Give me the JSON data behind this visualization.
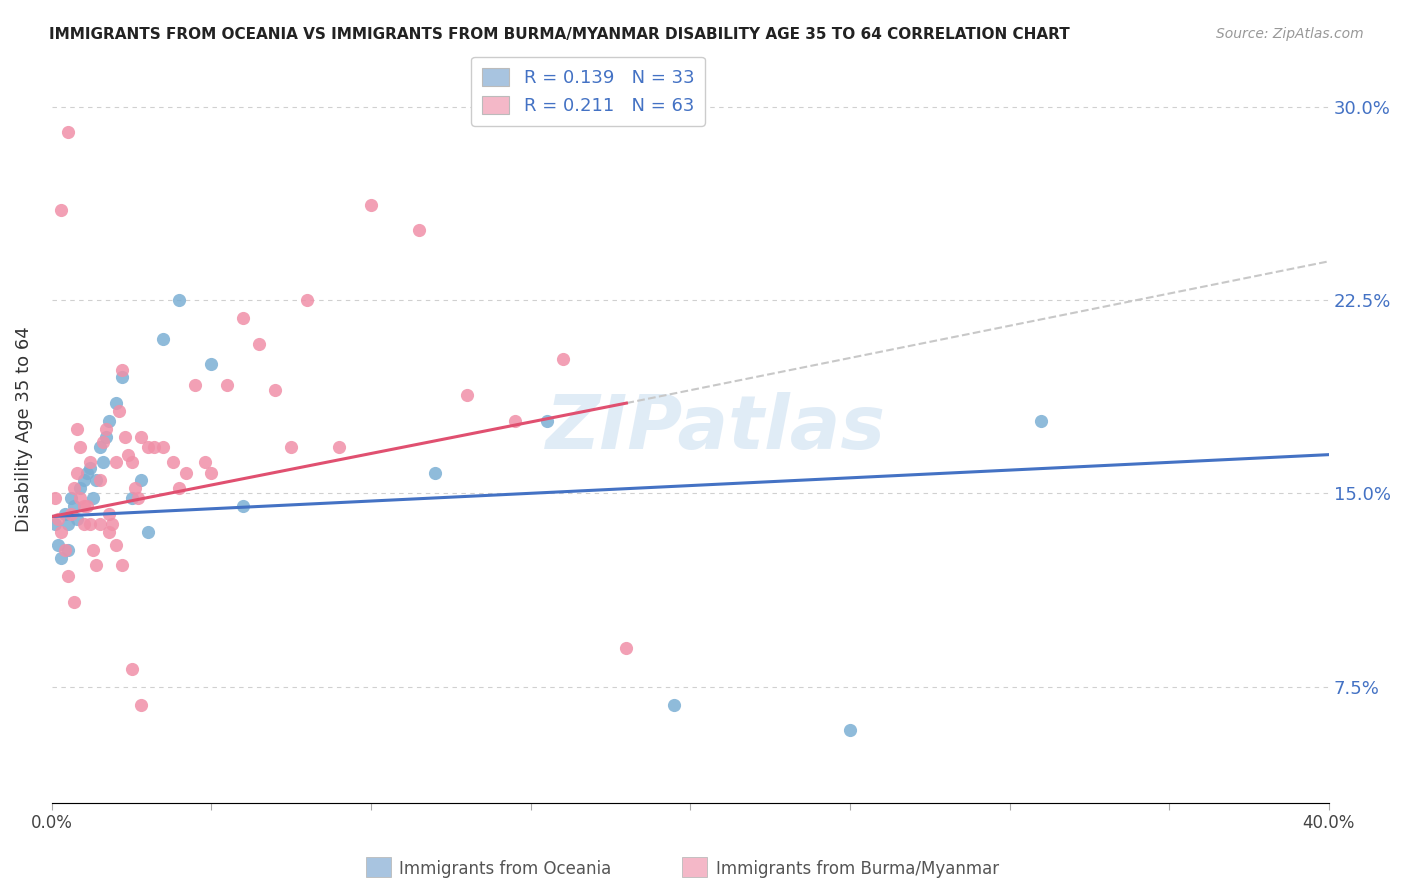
{
  "title": "IMMIGRANTS FROM OCEANIA VS IMMIGRANTS FROM BURMA/MYANMAR DISABILITY AGE 35 TO 64 CORRELATION CHART",
  "source": "Source: ZipAtlas.com",
  "ylabel": "Disability Age 35 to 64",
  "yticks": [
    "7.5%",
    "15.0%",
    "22.5%",
    "30.0%"
  ],
  "ytick_vals": [
    0.075,
    0.15,
    0.225,
    0.3
  ],
  "xlim": [
    0.0,
    0.4
  ],
  "ylim": [
    0.03,
    0.32
  ],
  "watermark": "ZIPatlas",
  "legend_series1_label": "R = 0.139   N = 33",
  "legend_series2_label": "R = 0.211   N = 63",
  "legend_series1_color": "#a8c4e0",
  "legend_series2_color": "#f4b8c8",
  "footer_label1": "Immigrants from Oceania",
  "footer_label2": "Immigrants from Burma/Myanmar",
  "blue_color": "#7bafd4",
  "pink_color": "#f090a8",
  "trend_blue": "#4472c4",
  "trend_pink": "#e05070",
  "trend_gray_dashed": "#c8c8c8",
  "background_color": "#ffffff",
  "grid_color": "#d0d0d0",
  "oceania_x": [
    0.001,
    0.002,
    0.003,
    0.004,
    0.005,
    0.005,
    0.006,
    0.007,
    0.008,
    0.009,
    0.01,
    0.011,
    0.012,
    0.013,
    0.014,
    0.015,
    0.016,
    0.017,
    0.018,
    0.02,
    0.022,
    0.025,
    0.028,
    0.03,
    0.035,
    0.04,
    0.05,
    0.06,
    0.12,
    0.155,
    0.195,
    0.25,
    0.31
  ],
  "oceania_y": [
    0.138,
    0.13,
    0.125,
    0.142,
    0.138,
    0.128,
    0.148,
    0.145,
    0.14,
    0.152,
    0.155,
    0.158,
    0.16,
    0.148,
    0.155,
    0.168,
    0.162,
    0.172,
    0.178,
    0.185,
    0.195,
    0.148,
    0.155,
    0.135,
    0.21,
    0.225,
    0.2,
    0.145,
    0.158,
    0.178,
    0.068,
    0.058,
    0.178
  ],
  "burma_x": [
    0.001,
    0.002,
    0.003,
    0.004,
    0.005,
    0.006,
    0.007,
    0.008,
    0.009,
    0.01,
    0.011,
    0.012,
    0.013,
    0.014,
    0.015,
    0.016,
    0.017,
    0.018,
    0.019,
    0.02,
    0.021,
    0.022,
    0.023,
    0.024,
    0.025,
    0.026,
    0.027,
    0.028,
    0.03,
    0.032,
    0.035,
    0.038,
    0.04,
    0.042,
    0.045,
    0.048,
    0.05,
    0.055,
    0.06,
    0.065,
    0.07,
    0.075,
    0.08,
    0.09,
    0.1,
    0.115,
    0.13,
    0.145,
    0.16,
    0.18,
    0.003,
    0.005,
    0.007,
    0.008,
    0.009,
    0.01,
    0.012,
    0.015,
    0.018,
    0.02,
    0.022,
    0.025,
    0.028
  ],
  "burma_y": [
    0.148,
    0.14,
    0.135,
    0.128,
    0.118,
    0.142,
    0.152,
    0.158,
    0.148,
    0.138,
    0.145,
    0.162,
    0.128,
    0.122,
    0.155,
    0.17,
    0.175,
    0.142,
    0.138,
    0.162,
    0.182,
    0.198,
    0.172,
    0.165,
    0.162,
    0.152,
    0.148,
    0.172,
    0.168,
    0.168,
    0.168,
    0.162,
    0.152,
    0.158,
    0.192,
    0.162,
    0.158,
    0.192,
    0.218,
    0.208,
    0.19,
    0.168,
    0.225,
    0.168,
    0.262,
    0.252,
    0.188,
    0.178,
    0.202,
    0.09,
    0.26,
    0.29,
    0.108,
    0.175,
    0.168,
    0.145,
    0.138,
    0.138,
    0.135,
    0.13,
    0.122,
    0.082,
    0.068
  ],
  "trend_blue_x0": 0.0,
  "trend_blue_y0": 0.141,
  "trend_blue_x1": 0.4,
  "trend_blue_y1": 0.165,
  "trend_pink_x0": 0.0,
  "trend_pink_y0": 0.141,
  "trend_pink_x1": 0.18,
  "trend_pink_y1": 0.185,
  "trend_gray_x0": 0.18,
  "trend_gray_y0": 0.185,
  "trend_gray_x1": 0.4,
  "trend_gray_y1": 0.24
}
